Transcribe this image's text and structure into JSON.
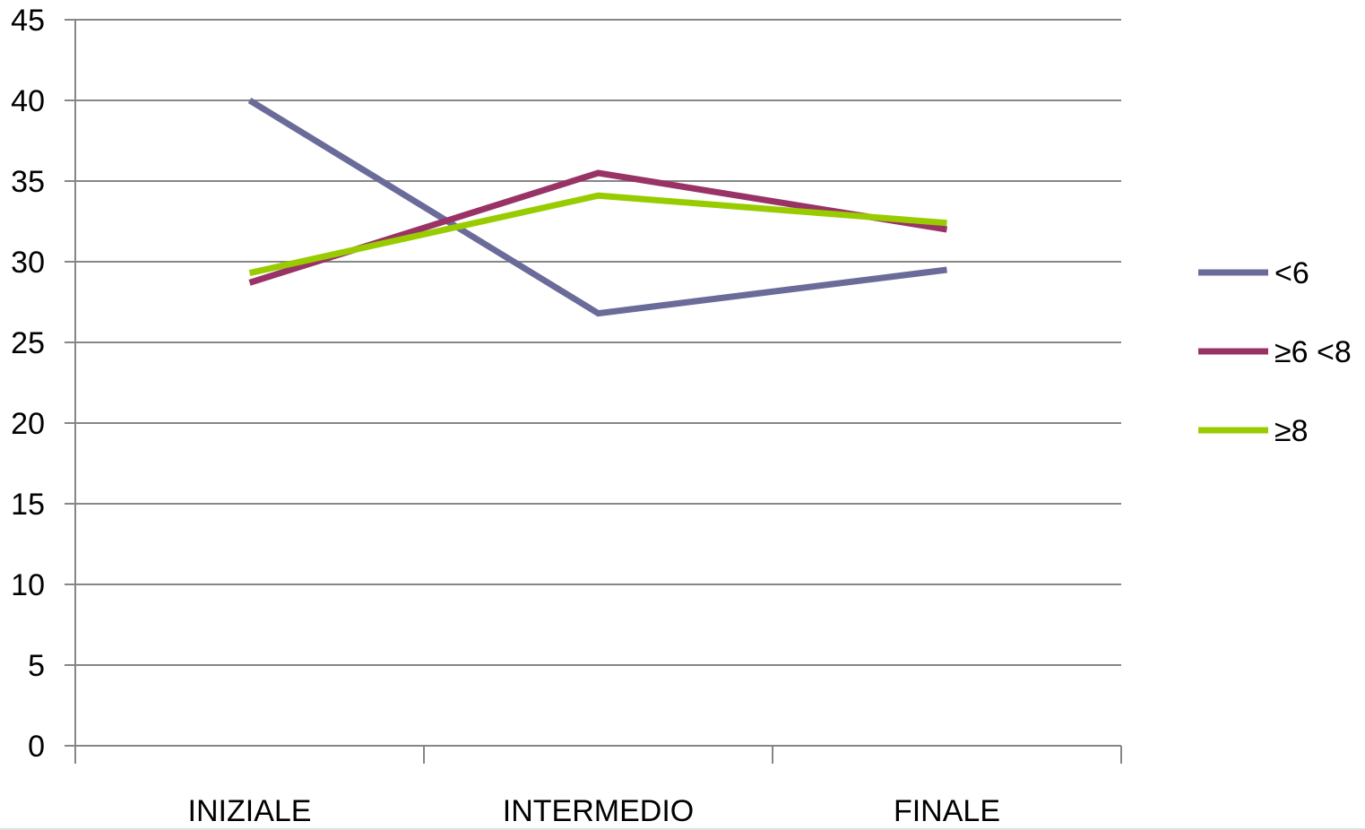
{
  "chart_data": {
    "type": "line",
    "categories": [
      "INIZIALE",
      "INTERMEDIO",
      "FINALE"
    ],
    "series": [
      {
        "name": "<6",
        "values": [
          40,
          26.8,
          29.5
        ],
        "color": "#6b6b9a"
      },
      {
        "name": "≥6 <8",
        "values": [
          28.7,
          35.5,
          32
        ],
        "color": "#993366"
      },
      {
        "name": "≥8",
        "values": [
          29.3,
          34.1,
          32.4
        ],
        "color": "#99cc00"
      }
    ],
    "ylim": [
      0,
      45
    ],
    "yticks": [
      0,
      5,
      10,
      15,
      20,
      25,
      30,
      35,
      40,
      45
    ],
    "grid": true,
    "legend_position": "right"
  }
}
